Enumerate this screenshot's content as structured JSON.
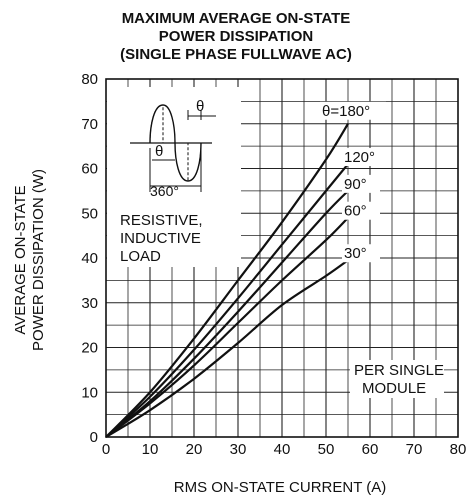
{
  "chart_data": {
    "type": "line",
    "title_lines": [
      "MAXIMUM AVERAGE ON-STATE",
      "POWER DISSIPATION",
      "(SINGLE PHASE FULLWAVE AC)"
    ],
    "xlabel": "RMS ON-STATE CURRENT (A)",
    "ylabel_lines": [
      "AVERAGE ON-STATE",
      "POWER DISSIPATION (W)"
    ],
    "xlim": [
      0,
      80
    ],
    "ylim": [
      0,
      80
    ],
    "xticks": [
      "0",
      "10",
      "20",
      "30",
      "40",
      "50",
      "60",
      "70",
      "80"
    ],
    "yticks": [
      "0",
      "10",
      "20",
      "30",
      "40",
      "50",
      "60",
      "70",
      "80"
    ],
    "grid": true,
    "series": [
      {
        "name": "θ=180°",
        "x": [
          0,
          10,
          20,
          30,
          40,
          50,
          55
        ],
        "y": [
          0,
          10,
          22,
          35,
          48,
          62,
          70
        ]
      },
      {
        "name": "120°",
        "x": [
          0,
          10,
          20,
          30,
          40,
          50,
          55
        ],
        "y": [
          0,
          9,
          19.5,
          31,
          43,
          55,
          61
        ]
      },
      {
        "name": "90°",
        "x": [
          0,
          10,
          20,
          30,
          40,
          50,
          55
        ],
        "y": [
          0,
          8,
          17.5,
          28,
          39,
          50,
          55
        ]
      },
      {
        "name": "60°",
        "x": [
          0,
          10,
          20,
          30,
          40,
          50,
          55
        ],
        "y": [
          0,
          7.5,
          16,
          25.5,
          35,
          44,
          49
        ]
      },
      {
        "name": "30°",
        "x": [
          0,
          10,
          20,
          30,
          40,
          50,
          55
        ],
        "y": [
          0,
          6,
          13,
          21,
          29.5,
          36,
          39.5
        ]
      }
    ],
    "inset": {
      "theta_label": "θ",
      "period_label": "360°",
      "load_lines": [
        "RESISTIVE,",
        "INDUCTIVE",
        "LOAD"
      ]
    },
    "annotation_lines": [
      "PER SINGLE",
      "MODULE"
    ]
  }
}
